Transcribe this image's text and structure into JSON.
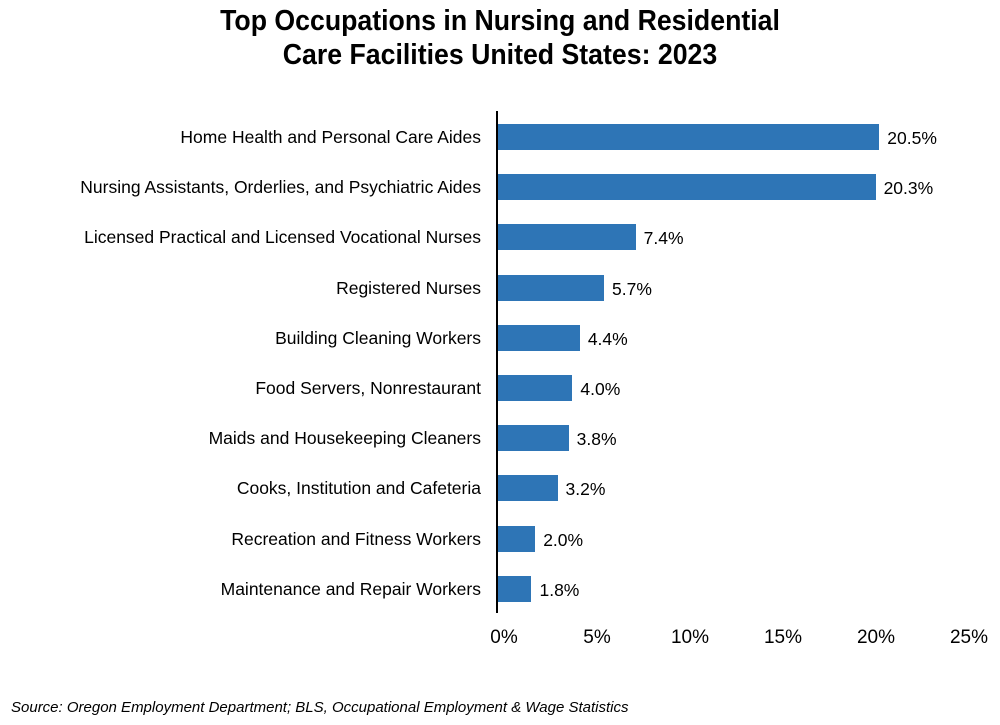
{
  "chart": {
    "title_line1": "Top Occupations in Nursing and Residential",
    "title_line2": "Care Facilities United States: 2023",
    "source": "Source: Oregon Employment Department; BLS, Occupational Employment & Wage Statistics",
    "bar_color": "#2e75b6",
    "x_ticks": [
      "0%",
      "5%",
      "10%",
      "15%",
      "20%",
      "25%"
    ]
  },
  "chart_data": {
    "type": "bar",
    "orientation": "horizontal",
    "title": "Top Occupations in Nursing and Residential Care Facilities United States: 2023",
    "xlabel": "",
    "ylabel": "",
    "xlim": [
      0,
      25
    ],
    "x_tick_labels": [
      "0%",
      "5%",
      "10%",
      "15%",
      "20%",
      "25%"
    ],
    "grid": false,
    "legend": null,
    "categories": [
      "Home Health and Personal Care Aides",
      "Nursing Assistants, Orderlies, and Psychiatric Aides",
      "Licensed Practical and Licensed Vocational Nurses",
      "Registered Nurses",
      "Building Cleaning Workers",
      "Food Servers, Nonrestaurant",
      "Maids and Housekeeping Cleaners",
      "Cooks, Institution and Cafeteria",
      "Recreation and Fitness Workers",
      "Maintenance and Repair Workers"
    ],
    "values": [
      20.5,
      20.3,
      7.4,
      5.7,
      4.4,
      4.0,
      3.8,
      3.2,
      2.0,
      1.8
    ],
    "value_labels": [
      "20.5%",
      "20.3%",
      "7.4%",
      "5.7%",
      "4.4%",
      "4.0%",
      "3.8%",
      "3.2%",
      "2.0%",
      "1.8%"
    ],
    "unit": "%",
    "source": "Source: Oregon Employment Department; BLS, Occupational Employment & Wage Statistics"
  }
}
